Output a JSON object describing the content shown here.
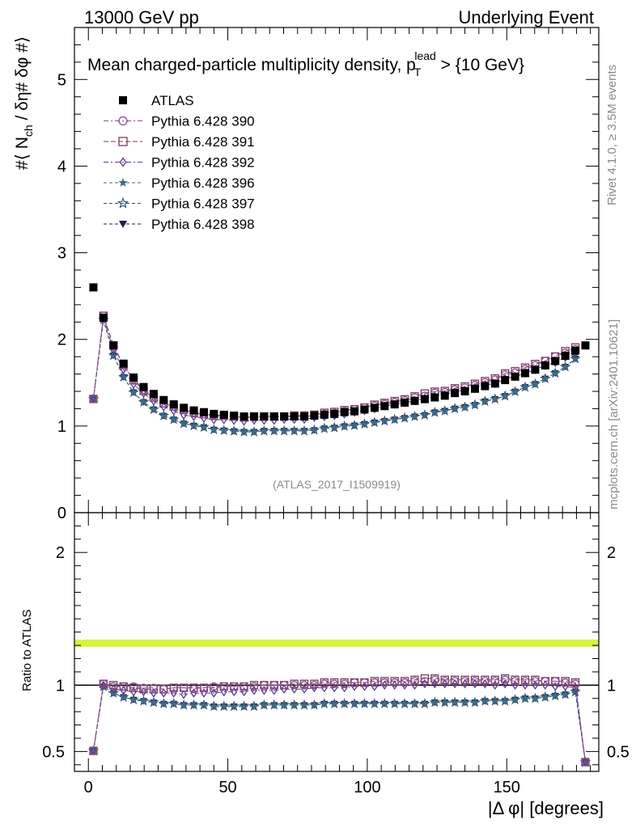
{
  "header": {
    "left": "13000 GeV pp",
    "right": "Underlying Event"
  },
  "side": {
    "rivet": "Rivet 4.1.0, ≥ 3.5M events",
    "mcplots": "mcplots.cern.ch [arXiv:2401.10621]"
  },
  "chart_data": {
    "type": "scatter",
    "title": "Mean charged-particle multiplicity density, p_T^lead > {10 GeV}",
    "title_main": "Mean charged-particle multiplicity density, p",
    "title_sub": "T",
    "title_sup": "lead",
    "title_tail": " > {10 GeV}",
    "analysis_label": "(ATLAS_2017_I1509919)",
    "ylabel": "#⟨ N_ch / δη# δφ #⟩",
    "ylabel_a": "#⟨ N",
    "ylabel_sub": "ch",
    "ylabel_b": " / δη# δφ #⟩",
    "ratio_ylabel": "Ratio to ATLAS",
    "xlabel": "|Δ φ| [degrees]",
    "xlim": [
      -5,
      183
    ],
    "ylim": [
      0,
      5.6
    ],
    "ratio_ylim": [
      0.35,
      2.3
    ],
    "main_yticks": [
      0,
      1,
      2,
      3,
      4,
      5
    ],
    "main_ytick_labels": [
      "0",
      "1",
      "2",
      "3",
      "4",
      "5"
    ],
    "ratio_yticks": [
      0.5,
      1,
      2
    ],
    "ratio_ytick_labels": [
      "0.5",
      "1",
      "2"
    ],
    "xticks": [
      0,
      50,
      100,
      150
    ],
    "xtick_labels": [
      "0",
      "50",
      "100",
      "150"
    ],
    "legend_position": "top-left",
    "series": [
      {
        "name": "ATLAS",
        "marker": "square-filled",
        "color": "#000000",
        "x": [
          1.8,
          5.4,
          9.0,
          12.6,
          16.2,
          19.8,
          23.4,
          27.0,
          30.6,
          34.2,
          37.8,
          41.4,
          45.0,
          48.6,
          52.2,
          55.8,
          59.4,
          63.0,
          66.6,
          70.2,
          73.8,
          77.4,
          81.0,
          84.6,
          88.2,
          91.8,
          95.4,
          99.0,
          102.6,
          106.2,
          109.8,
          113.4,
          117.0,
          120.6,
          124.2,
          127.8,
          131.4,
          135.0,
          138.6,
          142.2,
          145.8,
          149.4,
          153.0,
          156.6,
          160.2,
          163.8,
          167.4,
          171.0,
          174.6,
          178.2
        ],
        "y": [
          2.6,
          2.25,
          1.93,
          1.72,
          1.56,
          1.45,
          1.37,
          1.3,
          1.25,
          1.21,
          1.18,
          1.16,
          1.14,
          1.13,
          1.12,
          1.11,
          1.11,
          1.11,
          1.11,
          1.11,
          1.11,
          1.11,
          1.12,
          1.13,
          1.14,
          1.16,
          1.17,
          1.19,
          1.21,
          1.23,
          1.25,
          1.27,
          1.29,
          1.31,
          1.33,
          1.35,
          1.38,
          1.4,
          1.43,
          1.46,
          1.49,
          1.53,
          1.57,
          1.61,
          1.65,
          1.7,
          1.75,
          1.81,
          1.87,
          1.93
        ]
      },
      {
        "name": "Pythia 6.428 390",
        "marker": "circle-open",
        "color": "#8a4b8f",
        "dash": "6,3,2,3",
        "ratio": [
          0.505,
          1.01,
          0.99,
          0.99,
          0.99,
          0.98,
          0.98,
          0.97,
          0.98,
          0.98,
          0.97,
          0.98,
          0.99,
          0.99,
          0.99,
          0.99,
          0.99,
          1.0,
          1.0,
          1.0,
          1.0,
          1.0,
          1.0,
          1.01,
          1.01,
          1.01,
          1.02,
          1.02,
          1.02,
          1.02,
          1.02,
          1.02,
          1.03,
          1.03,
          1.04,
          1.03,
          1.03,
          1.03,
          1.03,
          1.03,
          1.03,
          1.04,
          1.03,
          1.03,
          1.03,
          1.03,
          1.03,
          1.02,
          1.01,
          0.42
        ]
      },
      {
        "name": "Pythia 6.428 391",
        "marker": "square-open",
        "color": "#7a3d5c",
        "dash": "6,3",
        "ratio": [
          0.505,
          1.01,
          1.0,
          0.99,
          0.98,
          0.97,
          0.97,
          0.97,
          0.98,
          0.98,
          0.98,
          0.98,
          0.98,
          0.99,
          0.99,
          0.99,
          1.0,
          1.0,
          1.0,
          1.0,
          1.01,
          1.01,
          1.01,
          1.02,
          1.02,
          1.02,
          1.02,
          1.02,
          1.03,
          1.03,
          1.03,
          1.03,
          1.04,
          1.05,
          1.05,
          1.04,
          1.04,
          1.04,
          1.04,
          1.04,
          1.04,
          1.05,
          1.04,
          1.04,
          1.04,
          1.03,
          1.03,
          1.03,
          1.02,
          0.42
        ]
      },
      {
        "name": "Pythia 6.428 392",
        "marker": "diamond-open",
        "color": "#5b3a8e",
        "dash": "6,3,2,3",
        "ratio": [
          0.505,
          1.0,
          0.97,
          0.96,
          0.95,
          0.95,
          0.94,
          0.94,
          0.94,
          0.93,
          0.94,
          0.94,
          0.94,
          0.95,
          0.95,
          0.95,
          0.96,
          0.96,
          0.96,
          0.97,
          0.97,
          0.97,
          0.98,
          0.98,
          0.98,
          0.98,
          0.99,
          0.99,
          0.99,
          1.0,
          1.0,
          1.0,
          1.0,
          1.01,
          1.01,
          1.01,
          1.01,
          1.01,
          1.01,
          1.01,
          1.0,
          1.01,
          1.0,
          1.0,
          1.0,
          1.0,
          0.99,
          0.99,
          0.98,
          0.42
        ]
      },
      {
        "name": "Pythia 6.428 396",
        "marker": "star-filled",
        "color": "#3f6a86",
        "dash": "4,3",
        "ratio": [
          0.505,
          0.99,
          0.94,
          0.91,
          0.89,
          0.88,
          0.87,
          0.86,
          0.86,
          0.85,
          0.85,
          0.85,
          0.84,
          0.84,
          0.84,
          0.84,
          0.84,
          0.85,
          0.85,
          0.85,
          0.85,
          0.85,
          0.85,
          0.86,
          0.86,
          0.86,
          0.86,
          0.86,
          0.86,
          0.86,
          0.86,
          0.86,
          0.86,
          0.86,
          0.87,
          0.87,
          0.87,
          0.87,
          0.87,
          0.88,
          0.88,
          0.88,
          0.89,
          0.9,
          0.9,
          0.91,
          0.92,
          0.93,
          0.95,
          0.42
        ]
      },
      {
        "name": "Pythia 6.428 397",
        "marker": "star-open",
        "color": "#2f4f6e",
        "dash": "4,3",
        "ratio": [
          0.505,
          0.99,
          0.94,
          0.91,
          0.89,
          0.88,
          0.87,
          0.86,
          0.86,
          0.85,
          0.85,
          0.85,
          0.84,
          0.84,
          0.84,
          0.84,
          0.84,
          0.85,
          0.85,
          0.85,
          0.85,
          0.85,
          0.85,
          0.86,
          0.86,
          0.86,
          0.86,
          0.86,
          0.86,
          0.86,
          0.86,
          0.86,
          0.86,
          0.86,
          0.87,
          0.87,
          0.87,
          0.87,
          0.87,
          0.88,
          0.88,
          0.88,
          0.89,
          0.9,
          0.9,
          0.91,
          0.92,
          0.93,
          0.95,
          0.42
        ]
      },
      {
        "name": "Pythia 6.428 398",
        "marker": "triangle-down-filled",
        "color": "#1c2147",
        "dash": "4,3",
        "ratio": [
          0.505,
          0.99,
          0.94,
          0.91,
          0.89,
          0.88,
          0.87,
          0.86,
          0.86,
          0.85,
          0.85,
          0.85,
          0.84,
          0.84,
          0.84,
          0.84,
          0.84,
          0.85,
          0.85,
          0.85,
          0.85,
          0.85,
          0.85,
          0.86,
          0.86,
          0.86,
          0.86,
          0.86,
          0.86,
          0.86,
          0.86,
          0.86,
          0.86,
          0.86,
          0.87,
          0.87,
          0.87,
          0.87,
          0.87,
          0.88,
          0.88,
          0.88,
          0.89,
          0.9,
          0.9,
          0.91,
          0.92,
          0.93,
          0.95,
          0.42
        ]
      }
    ]
  }
}
